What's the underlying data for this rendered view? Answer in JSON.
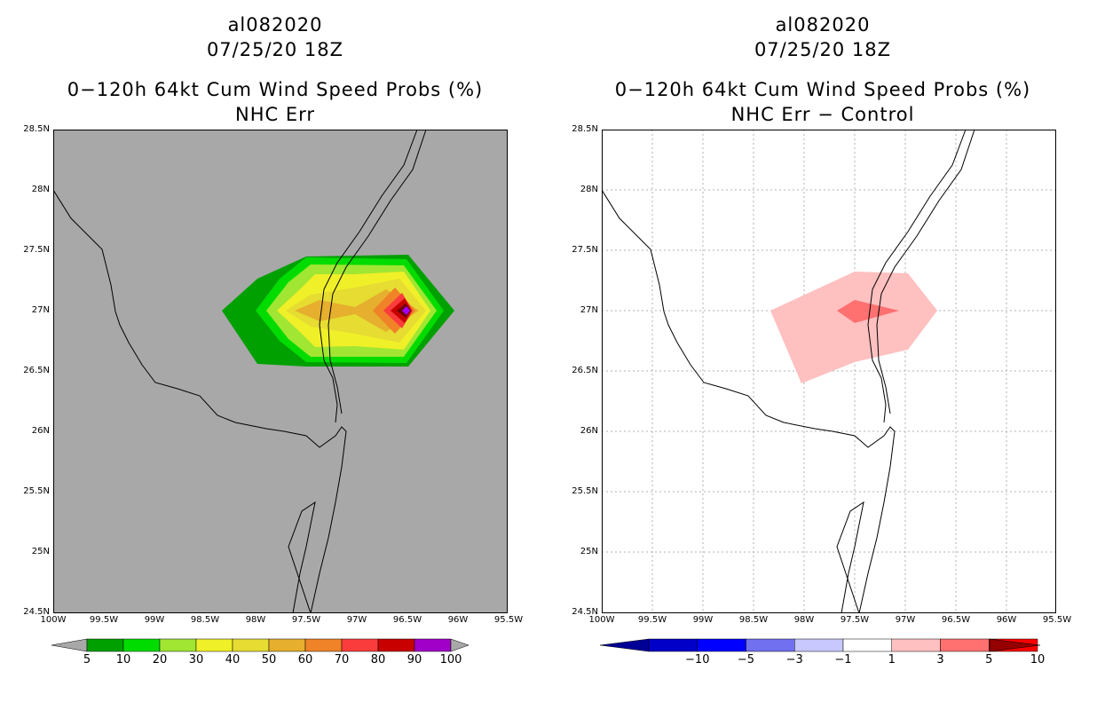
{
  "left": {
    "title_line1": "al082020",
    "title_line2": "07/25/20 18Z",
    "title_line3": "0−120h 64kt Cum Wind Speed Probs (%)",
    "title_line4": "NHC Err",
    "background_color": "#a8a8a8",
    "colorbar": {
      "labels": [
        "5",
        "10",
        "20",
        "30",
        "40",
        "50",
        "60",
        "70",
        "80",
        "90",
        "100"
      ],
      "colors": [
        "#00a000",
        "#00dc00",
        "#a0e632",
        "#f0f028",
        "#e6dc32",
        "#e6af2d",
        "#f08228",
        "#fa3c3c",
        "#c80000",
        "#a000c8"
      ],
      "end_low_color": "#a8a8a8",
      "end_high_color": "#a8a8a8"
    }
  },
  "right": {
    "title_line1": "al082020",
    "title_line2": "07/25/20 18Z",
    "title_line3": "0−120h 64kt Cum Wind Speed Probs (%)",
    "title_line4": "NHC Err − Control",
    "background_color": "#ffffff",
    "colorbar": {
      "labels": [
        "−10",
        "−5",
        "−3",
        "−1",
        "1",
        "3",
        "5",
        "10"
      ],
      "colors": [
        "#0000c8",
        "#0000ff",
        "#7070f0",
        "#c8c8ff",
        "#ffffff",
        "#ffc0c0",
        "#ff7070",
        "#ff0000"
      ],
      "end_low_color": "#000096",
      "end_high_color": "#960000"
    }
  },
  "axes": {
    "lat_labels": [
      "28.5N",
      "28N",
      "27.5N",
      "27N",
      "26.5N",
      "26N",
      "25.5N",
      "25N",
      "24.5N"
    ],
    "lon_labels": [
      "100W",
      "99.5W",
      "99W",
      "98.5W",
      "98W",
      "97.5W",
      "97W",
      "96.5W",
      "96W",
      "95.5W"
    ]
  }
}
